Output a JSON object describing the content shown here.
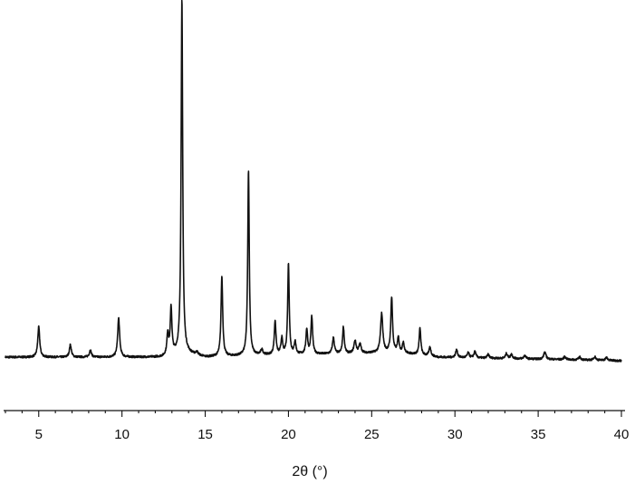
{
  "chart_data": {
    "type": "line",
    "title": "",
    "xlabel": "2θ (°)",
    "ylabel": "",
    "xlim": [
      3,
      40
    ],
    "ylim": [
      0,
      100
    ],
    "x_ticks": [
      5,
      10,
      15,
      20,
      25,
      30,
      35,
      40
    ],
    "grid": false,
    "legend": "none",
    "line_color": "#111111",
    "peaks": [
      {
        "x": 5.0,
        "y": 8.5,
        "w": 0.07
      },
      {
        "x": 6.9,
        "y": 3.5,
        "w": 0.07
      },
      {
        "x": 8.1,
        "y": 2.0,
        "w": 0.07
      },
      {
        "x": 9.8,
        "y": 11.0,
        "w": 0.07
      },
      {
        "x": 12.75,
        "y": 6.0,
        "w": 0.06
      },
      {
        "x": 12.95,
        "y": 13.0,
        "w": 0.06
      },
      {
        "x": 13.6,
        "y": 100.0,
        "w": 0.055
      },
      {
        "x": 14.5,
        "y": 0.8,
        "w": 0.08
      },
      {
        "x": 16.0,
        "y": 22.5,
        "w": 0.06
      },
      {
        "x": 17.6,
        "y": 52.0,
        "w": 0.055
      },
      {
        "x": 18.4,
        "y": 1.5,
        "w": 0.08
      },
      {
        "x": 19.2,
        "y": 9.5,
        "w": 0.06
      },
      {
        "x": 19.6,
        "y": 4.5,
        "w": 0.06
      },
      {
        "x": 20.0,
        "y": 25.5,
        "w": 0.055
      },
      {
        "x": 20.4,
        "y": 3.5,
        "w": 0.06
      },
      {
        "x": 21.1,
        "y": 7.0,
        "w": 0.06
      },
      {
        "x": 21.4,
        "y": 10.5,
        "w": 0.06
      },
      {
        "x": 22.7,
        "y": 4.5,
        "w": 0.07
      },
      {
        "x": 23.3,
        "y": 7.5,
        "w": 0.06
      },
      {
        "x": 24.0,
        "y": 3.5,
        "w": 0.08
      },
      {
        "x": 24.3,
        "y": 2.5,
        "w": 0.08
      },
      {
        "x": 25.6,
        "y": 11.0,
        "w": 0.08
      },
      {
        "x": 26.2,
        "y": 15.5,
        "w": 0.06
      },
      {
        "x": 26.6,
        "y": 4.0,
        "w": 0.06
      },
      {
        "x": 26.9,
        "y": 3.0,
        "w": 0.06
      },
      {
        "x": 27.9,
        "y": 7.5,
        "w": 0.06
      },
      {
        "x": 28.5,
        "y": 2.5,
        "w": 0.07
      },
      {
        "x": 30.1,
        "y": 2.2,
        "w": 0.07
      },
      {
        "x": 30.8,
        "y": 1.4,
        "w": 0.07
      },
      {
        "x": 31.2,
        "y": 1.8,
        "w": 0.07
      },
      {
        "x": 32.0,
        "y": 1.0,
        "w": 0.07
      },
      {
        "x": 33.1,
        "y": 1.4,
        "w": 0.07
      },
      {
        "x": 33.4,
        "y": 1.2,
        "w": 0.07
      },
      {
        "x": 34.2,
        "y": 1.0,
        "w": 0.07
      },
      {
        "x": 35.4,
        "y": 2.0,
        "w": 0.08
      },
      {
        "x": 36.6,
        "y": 0.8,
        "w": 0.08
      },
      {
        "x": 37.5,
        "y": 0.8,
        "w": 0.08
      },
      {
        "x": 38.4,
        "y": 1.0,
        "w": 0.08
      },
      {
        "x": 39.1,
        "y": 0.8,
        "w": 0.08
      }
    ],
    "baseline": [
      [
        3,
        1.0
      ],
      [
        12.4,
        1.0
      ],
      [
        13.4,
        2.0
      ],
      [
        13.9,
        2.0
      ],
      [
        15.0,
        1.0
      ],
      [
        19.0,
        1.6
      ],
      [
        24.0,
        2.0
      ],
      [
        26.5,
        2.4
      ],
      [
        29.0,
        1.0
      ],
      [
        40,
        0.0
      ]
    ]
  }
}
